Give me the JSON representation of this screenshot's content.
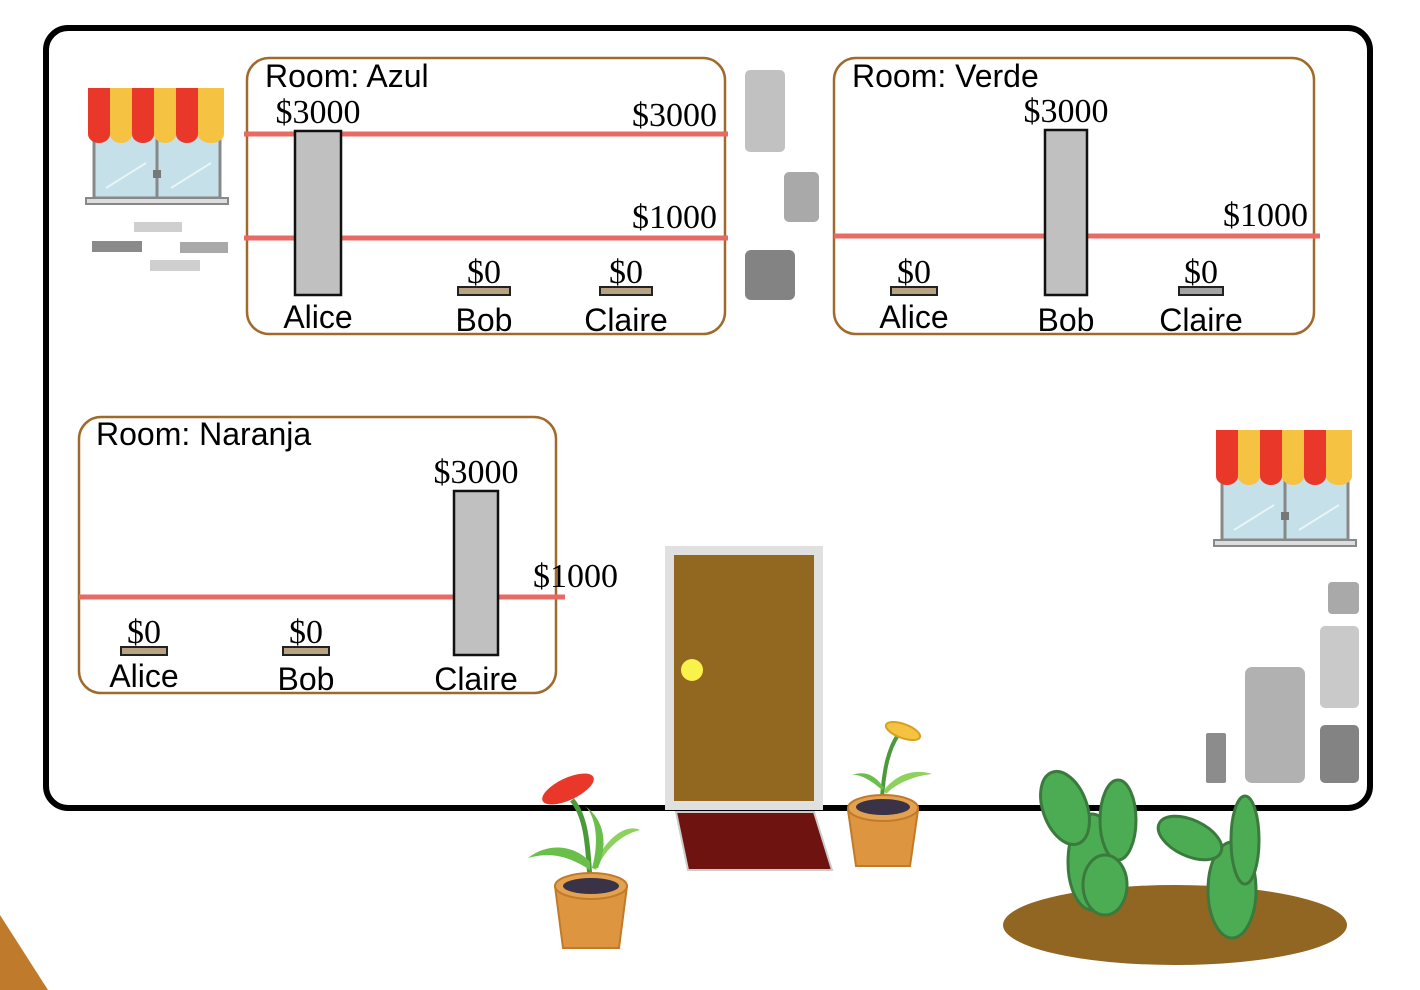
{
  "rooms": [
    {
      "name": "Room: Azul",
      "lines": [
        {
          "label": "$3000"
        },
        {
          "label": "$1000"
        }
      ],
      "bars": [
        {
          "name": "Alice",
          "label": "$3000",
          "value": 3000
        },
        {
          "name": "Bob",
          "label": "$0",
          "value": 0
        },
        {
          "name": "Claire",
          "label": "$0",
          "value": 0
        }
      ]
    },
    {
      "name": "Room: Verde",
      "lines": [
        {
          "label": "$1000"
        }
      ],
      "bars": [
        {
          "name": "Alice",
          "label": "$0",
          "value": 0
        },
        {
          "name": "Bob",
          "label": "$3000",
          "value": 3000
        },
        {
          "name": "Claire",
          "label": "$0",
          "value": 0
        }
      ]
    },
    {
      "name": "Room: Naranja",
      "lines": [
        {
          "label": "$1000"
        }
      ],
      "bars": [
        {
          "name": "Alice",
          "label": "$0",
          "value": 0
        },
        {
          "name": "Bob",
          "label": "$0",
          "value": 0
        },
        {
          "name": "Claire",
          "label": "$3000",
          "value": 3000
        }
      ]
    }
  ],
  "colors": {
    "room_border": "#a06a2c",
    "threshold_line": "#e86a64",
    "bar_fill": "#c0c0c0",
    "empty_bar_fill": "#b9a382",
    "door": "#926720",
    "doormat": "#6e130f",
    "awning_red": "#e93829",
    "awning_yellow": "#f5c242",
    "cactus": "#4cac53",
    "soil": "#916522",
    "pot": "#dd9540"
  }
}
